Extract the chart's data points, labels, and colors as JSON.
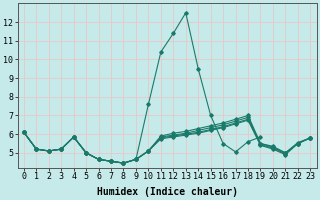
{
  "xlabel": "Humidex (Indice chaleur)",
  "bg_color": "#c6eaea",
  "grid_color": "#e8c8c8",
  "line_color": "#1a7a6a",
  "x_values": [
    0,
    1,
    2,
    3,
    4,
    5,
    6,
    7,
    8,
    9,
    10,
    11,
    12,
    13,
    14,
    15,
    16,
    17,
    18,
    19,
    20,
    21,
    22,
    23
  ],
  "lines": [
    [
      6.1,
      5.2,
      5.1,
      5.2,
      5.85,
      5.0,
      4.65,
      4.55,
      4.45,
      4.65,
      7.6,
      10.4,
      11.4,
      12.5,
      9.5,
      7.0,
      5.5,
      5.05,
      5.6,
      5.85,
      null,
      null,
      null,
      null
    ],
    [
      6.1,
      5.2,
      5.1,
      5.2,
      5.85,
      5.0,
      4.65,
      4.55,
      4.45,
      4.65,
      5.1,
      5.9,
      6.05,
      6.15,
      6.3,
      6.45,
      6.6,
      6.8,
      7.0,
      5.5,
      5.35,
      5.0,
      5.55,
      5.8
    ],
    [
      6.1,
      5.2,
      5.1,
      5.2,
      5.85,
      5.0,
      4.65,
      4.55,
      4.45,
      4.65,
      5.1,
      5.85,
      5.95,
      6.05,
      6.2,
      6.35,
      6.5,
      6.7,
      6.9,
      5.5,
      5.3,
      5.0,
      5.5,
      5.8
    ],
    [
      6.1,
      5.2,
      5.1,
      5.2,
      5.85,
      5.0,
      4.65,
      4.55,
      4.45,
      4.65,
      5.1,
      5.8,
      5.9,
      6.0,
      6.1,
      6.25,
      6.4,
      6.6,
      6.8,
      5.45,
      5.25,
      4.95,
      5.5,
      5.8
    ],
    [
      6.1,
      5.2,
      5.1,
      5.2,
      5.85,
      5.0,
      4.65,
      4.55,
      4.45,
      4.65,
      5.1,
      5.75,
      5.85,
      5.95,
      6.05,
      6.2,
      6.35,
      6.55,
      6.75,
      5.4,
      5.2,
      4.9,
      5.5,
      5.8
    ]
  ],
  "xlim": [
    -0.5,
    23.5
  ],
  "ylim": [
    4.2,
    13.0
  ],
  "yticks": [
    5,
    6,
    7,
    8,
    9,
    10,
    11,
    12
  ],
  "xticks": [
    0,
    1,
    2,
    3,
    4,
    5,
    6,
    7,
    8,
    9,
    10,
    11,
    12,
    13,
    14,
    15,
    16,
    17,
    18,
    19,
    20,
    21,
    22,
    23
  ],
  "xlabel_fontsize": 7.0,
  "tick_fontsize": 6.0,
  "marker": "D",
  "marker_size": 1.8,
  "line_width": 0.8
}
